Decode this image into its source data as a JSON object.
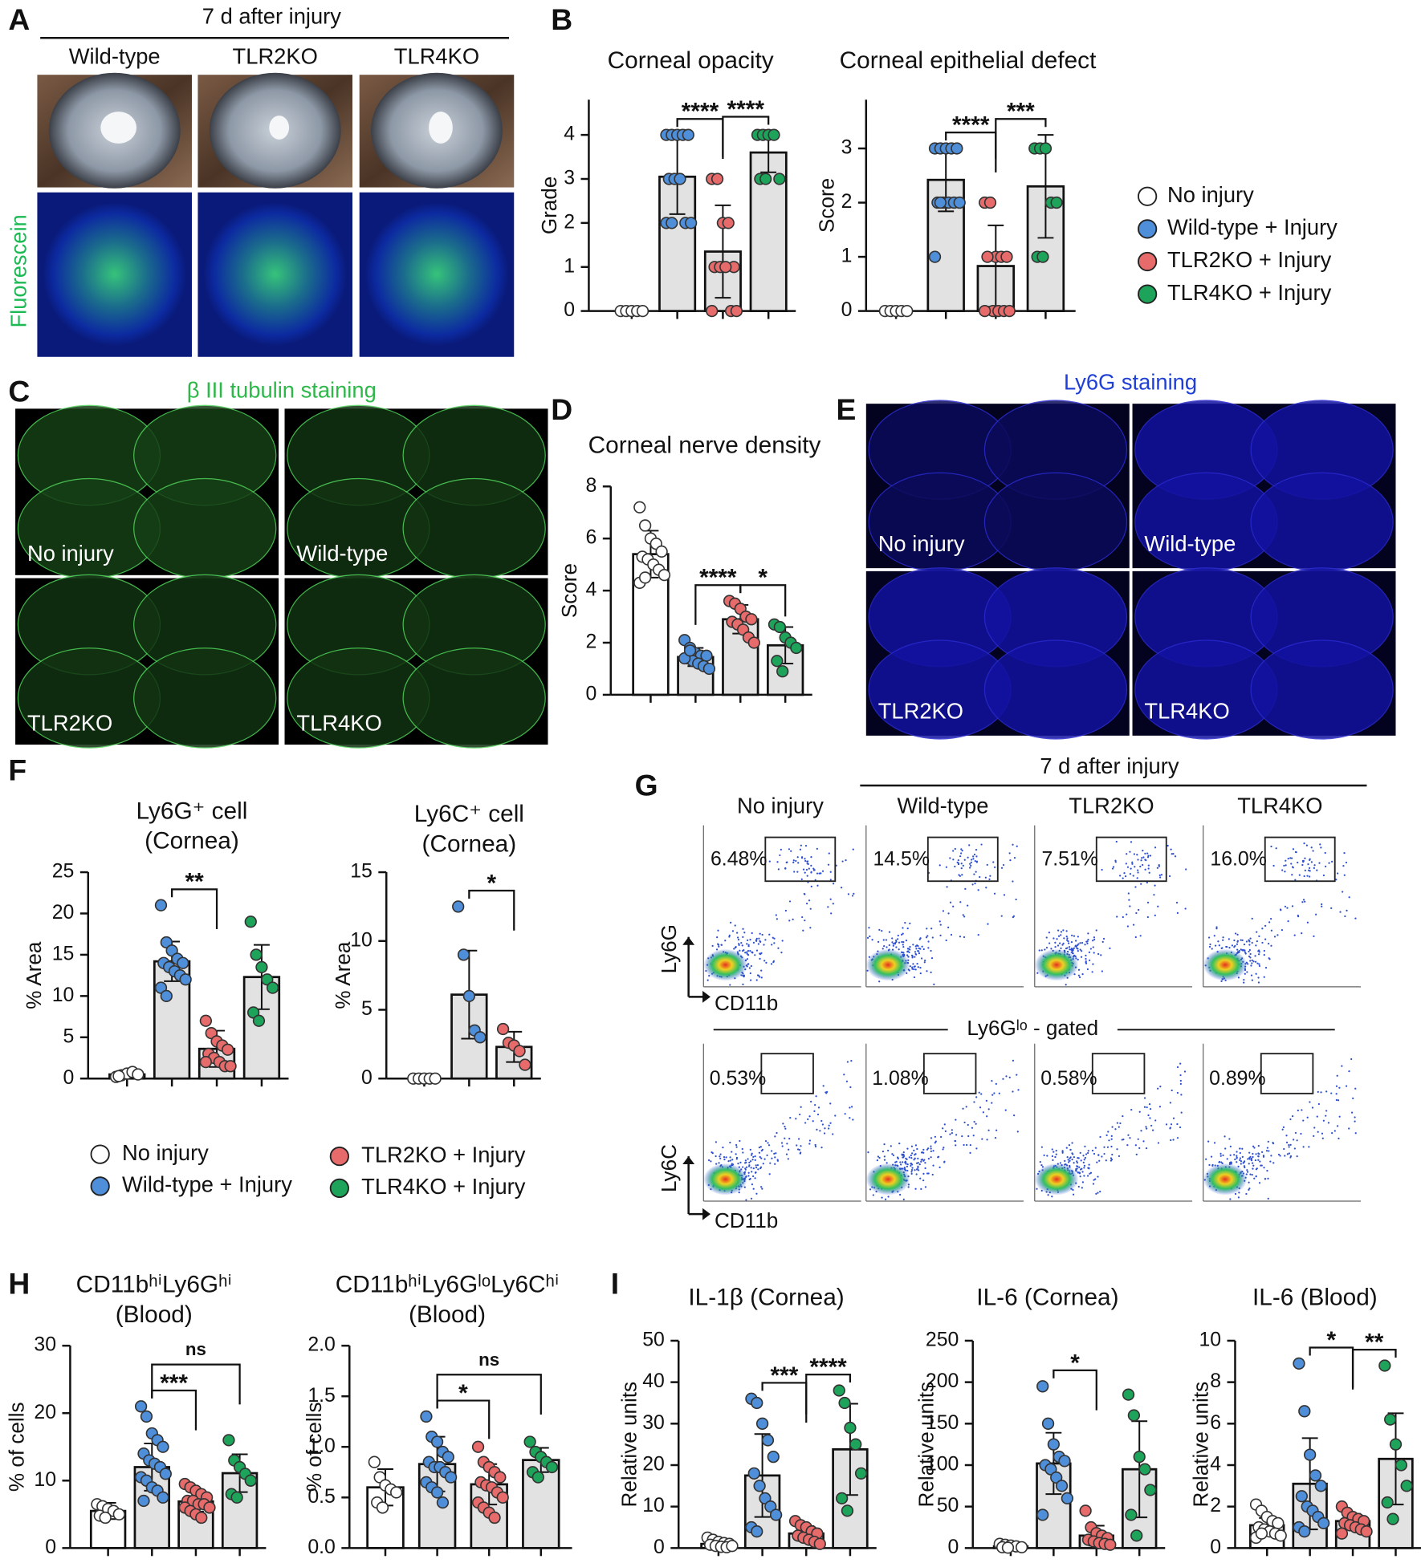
{
  "panel_labels": [
    "A",
    "B",
    "C",
    "D",
    "E",
    "F",
    "G",
    "H",
    "I"
  ],
  "panel_a": {
    "header": "7 d after injury",
    "columns": [
      "Wild-type",
      "TLR2KO",
      "TLR4KO"
    ],
    "row_label": "Fluorescein"
  },
  "panel_c": {
    "title": "β III tubulin staining",
    "labels": [
      "No injury",
      "Wild-type",
      "TLR2KO",
      "TLR4KO"
    ]
  },
  "panel_e": {
    "title": "Ly6G staining",
    "labels": [
      "No injury",
      "Wild-type",
      "TLR2KO",
      "TLR4KO"
    ]
  },
  "panel_g": {
    "header": "7 d after injury",
    "columns": [
      "No injury",
      "Wild-type",
      "TLR2KO",
      "TLR4KO"
    ],
    "top_gates": [
      "6.48%",
      "14.5%",
      "7.51%",
      "16.0%"
    ],
    "bottom_gates": [
      "0.53%",
      "1.08%",
      "0.58%",
      "0.89%"
    ],
    "top_axes": {
      "y": "Ly6G",
      "x": "CD11b"
    },
    "bottom_axes": {
      "y": "Ly6C",
      "x": "CD11b"
    },
    "divider": "Ly6Gˡᵒ - gated"
  },
  "legend": [
    {
      "name": "No injury",
      "color": "#ffffff"
    },
    {
      "name": "Wild-type + Injury",
      "color": "#4f8fda"
    },
    {
      "name": "TLR2KO + Injury",
      "color": "#e86b6b"
    },
    {
      "name": "TLR4KO + Injury",
      "color": "#1ea45a"
    }
  ],
  "chart_data": [
    {
      "type": "bar",
      "title": [
        "Corneal opacity"
      ],
      "ylabel": "Grade",
      "ylim": [
        0,
        4.8
      ],
      "yticks": [
        0,
        1,
        2,
        3,
        4
      ],
      "values": [
        0,
        3.05,
        1.35,
        3.6
      ],
      "errors": [
        0,
        0.85,
        1.05,
        0.45
      ],
      "points": [
        [
          0,
          0,
          0,
          0,
          0
        ],
        [
          4,
          4,
          4,
          4,
          4,
          3,
          3,
          3,
          2,
          2,
          2,
          2
        ],
        [
          3,
          3,
          2,
          2,
          1,
          1,
          1,
          1,
          0,
          0,
          0
        ],
        [
          4,
          4,
          4,
          4,
          3,
          3,
          3
        ]
      ],
      "comparisons": [
        {
          "groups": [
            1,
            2
          ],
          "label": "****"
        },
        {
          "groups": [
            2,
            3
          ],
          "label": "****"
        }
      ]
    },
    {
      "type": "bar",
      "title": [
        "Corneal epithelial defect"
      ],
      "ylabel": "Score",
      "ylim": [
        0,
        3.9
      ],
      "yticks": [
        0,
        1,
        2,
        3
      ],
      "values": [
        0,
        2.42,
        0.83,
        2.3
      ],
      "errors": [
        0,
        0.58,
        0.75,
        0.95
      ],
      "points": [
        [
          0,
          0,
          0,
          0,
          0
        ],
        [
          3,
          3,
          3,
          3,
          3,
          2,
          2,
          2,
          2,
          2,
          1,
          2
        ],
        [
          2,
          2,
          1,
          1,
          1,
          1,
          0,
          0,
          0,
          0,
          0
        ],
        [
          3,
          3,
          3,
          2,
          2,
          1,
          1
        ]
      ],
      "comparisons": [
        {
          "groups": [
            1,
            2
          ],
          "label": "****"
        },
        {
          "groups": [
            2,
            3
          ],
          "label": "***"
        }
      ]
    },
    {
      "type": "bar",
      "title": [
        "Corneal nerve density"
      ],
      "ylabel": "Score",
      "ylim": [
        0,
        8
      ],
      "yticks": [
        0,
        2,
        4,
        6,
        8
      ],
      "values": [
        5.4,
        1.45,
        2.9,
        1.9
      ],
      "errors": [
        0.9,
        0.35,
        0.55,
        0.7
      ],
      "points": [
        [
          7.2,
          6.5,
          6.0,
          5.8,
          5.5,
          5.3,
          5.2,
          5.0,
          4.8,
          4.6,
          4.3,
          4.5
        ],
        [
          2.1,
          1.8,
          1.6,
          1.5,
          1.5,
          1.4,
          1.3,
          1.2,
          1.1,
          1.0,
          1.4,
          1.7
        ],
        [
          3.6,
          3.5,
          3.3,
          3.0,
          2.9,
          2.8,
          2.7,
          2.5,
          2.2,
          2.0
        ],
        [
          2.7,
          2.6,
          2.2,
          2.0,
          1.8,
          1.3,
          0.9
        ]
      ],
      "comparisons": [
        {
          "groups": [
            1,
            2
          ],
          "label": "****"
        },
        {
          "groups": [
            2,
            3
          ],
          "label": "*"
        }
      ]
    },
    {
      "type": "bar",
      "title": [
        "Ly6G⁺ cell",
        "(Cornea)"
      ],
      "ylabel": "% Area",
      "ylim": [
        0,
        25
      ],
      "yticks": [
        0,
        5,
        10,
        15,
        20,
        25
      ],
      "values": [
        0.5,
        14.2,
        3.6,
        12.3
      ],
      "errors": [
        0.3,
        2.4,
        2.2,
        3.9
      ],
      "points": [
        [
          0.2,
          0.4,
          0.6,
          0.8,
          0.5,
          0.3
        ],
        [
          21,
          16.5,
          15.5,
          14.5,
          14,
          14,
          13.5,
          13,
          12.5,
          12,
          11,
          10
        ],
        [
          7,
          5.5,
          4.5,
          4,
          3.5,
          3,
          2.5,
          2,
          1.5,
          1.5,
          2
        ],
        [
          19,
          15,
          13.5,
          12,
          11,
          8,
          7
        ]
      ],
      "comparisons": [
        {
          "groups": [
            1,
            2
          ],
          "label": "**"
        }
      ]
    },
    {
      "type": "bar",
      "title": [
        "Ly6C⁺ cell",
        "(Cornea)"
      ],
      "ylabel": "% Area",
      "ylim": [
        0,
        15
      ],
      "yticks": [
        0,
        5,
        10,
        15
      ],
      "values": [
        0,
        6.1,
        2.3
      ],
      "errors": [
        0,
        3.2,
        1.1
      ],
      "points": [
        [
          0,
          0,
          0,
          0,
          0
        ],
        [
          12.5,
          9,
          6,
          3.5,
          3
        ],
        [
          3.6,
          2.6,
          2.4,
          2.0,
          1.0
        ]
      ],
      "comparisons": [
        {
          "groups": [
            1,
            2
          ],
          "label": "*"
        }
      ]
    },
    {
      "type": "bar",
      "title": [
        "CD11bʰⁱLy6Gʰⁱ",
        "(Blood)"
      ],
      "ylabel": "% of cells",
      "ylim": [
        0,
        30
      ],
      "yticks": [
        0,
        10,
        20,
        30
      ],
      "values": [
        5.5,
        12,
        6.9,
        11.1
      ],
      "errors": [
        1.2,
        3.5,
        1.5,
        2.8
      ],
      "points": [
        [
          6.5,
          6.2,
          5.8,
          5.5,
          5,
          4.8,
          4.5
        ],
        [
          21,
          19.5,
          17,
          16,
          15,
          14,
          13,
          12.5,
          12,
          11,
          10.5,
          10,
          9,
          8.5,
          7.5,
          7
        ],
        [
          9.5,
          9,
          8.5,
          8,
          7.5,
          7,
          7,
          6.5,
          6.5,
          6,
          6,
          5.5,
          5,
          4.5
        ],
        [
          16,
          13,
          12,
          11,
          10,
          8,
          7.5
        ]
      ],
      "comparisons": [
        {
          "groups": [
            1,
            2
          ],
          "label": "***"
        },
        {
          "groups": [
            1,
            3
          ],
          "label": "ns"
        }
      ]
    },
    {
      "type": "bar",
      "title": [
        "CD11bʰⁱLy6GˡᵒLy6Cʰⁱ",
        "(Blood)"
      ],
      "ylabel": "% of cells",
      "ylim": [
        0,
        2
      ],
      "yticks": [
        {
          "value": 0,
          "label": "0.0"
        },
        0.5,
        {
          "value": 1,
          "label": "1.0"
        },
        1.5,
        {
          "value": 2,
          "label": "2.0"
        }
      ],
      "values": [
        0.6,
        0.83,
        0.63,
        0.87
      ],
      "errors": [
        0.18,
        0.27,
        0.2,
        0.12
      ],
      "points": [
        [
          0.85,
          0.7,
          0.62,
          0.58,
          0.55,
          0.45,
          0.4
        ],
        [
          1.3,
          1.1,
          1.05,
          0.95,
          0.9,
          0.85,
          0.8,
          0.8,
          0.75,
          0.7,
          0.65,
          0.6,
          0.55,
          0.45
        ],
        [
          1.0,
          0.85,
          0.8,
          0.75,
          0.7,
          0.65,
          0.62,
          0.6,
          0.55,
          0.5,
          0.45,
          0.4,
          0.35,
          0.3
        ],
        [
          1.05,
          0.95,
          0.9,
          0.85,
          0.8,
          0.75,
          0.7
        ]
      ],
      "comparisons": [
        {
          "groups": [
            1,
            2
          ],
          "label": "*"
        },
        {
          "groups": [
            1,
            3
          ],
          "label": "ns"
        }
      ]
    },
    {
      "type": "bar",
      "title": [
        "IL-1β (Cornea)"
      ],
      "ylabel": "Relative units",
      "ylim": [
        0,
        50
      ],
      "yticks": [
        0,
        10,
        20,
        30,
        40,
        50
      ],
      "values": [
        1,
        17.5,
        3.5,
        23.8
      ],
      "errors": [
        0.8,
        10,
        1.8,
        11
      ],
      "points": [
        [
          2.5,
          2,
          1.5,
          1.2,
          1,
          0.8,
          0.5,
          0.3,
          0.2,
          0.5
        ],
        [
          36,
          35,
          30,
          26,
          22,
          18,
          15,
          12,
          10,
          8,
          5,
          4
        ],
        [
          6.5,
          5.5,
          5,
          4,
          3.5,
          3,
          2.5,
          2,
          1.5,
          1
        ],
        [
          38,
          35,
          29,
          25,
          18,
          12,
          9
        ]
      ],
      "comparisons": [
        {
          "groups": [
            1,
            2
          ],
          "label": "***"
        },
        {
          "groups": [
            2,
            3
          ],
          "label": "****"
        }
      ]
    },
    {
      "type": "bar",
      "title": [
        "IL-6 (Cornea)"
      ],
      "ylabel": "Relative units",
      "ylim": [
        0,
        250
      ],
      "yticks": [
        0,
        50,
        100,
        150,
        200,
        250
      ],
      "values": [
        2,
        102,
        15,
        95
      ],
      "errors": [
        2,
        37,
        12,
        58
      ],
      "points": [
        [
          5,
          4,
          3,
          2,
          1,
          1,
          0.5
        ],
        [
          195,
          150,
          125,
          110,
          105,
          100,
          95,
          85,
          75,
          60,
          40
        ],
        [
          45,
          25,
          18,
          15,
          12,
          10,
          8,
          6,
          5,
          4
        ],
        [
          185,
          160,
          110,
          95,
          70,
          40,
          15
        ]
      ],
      "comparisons": [
        {
          "groups": [
            1,
            2
          ],
          "label": "*"
        }
      ]
    },
    {
      "type": "bar",
      "title": [
        "IL-6 (Blood)"
      ],
      "ylabel": "Relative units",
      "ylim": [
        0,
        10
      ],
      "yticks": [
        0,
        2,
        4,
        6,
        8,
        10
      ],
      "values": [
        1.1,
        3.1,
        1.3,
        4.3
      ],
      "errors": [
        0.35,
        2.2,
        0.35,
        2.2
      ],
      "points": [
        [
          2.1,
          1.8,
          1.5,
          1.3,
          1.2,
          1.0,
          0.9,
          0.8,
          0.7,
          0.6,
          0.5,
          0.7
        ],
        [
          8.9,
          6.6,
          4.5,
          3.5,
          3,
          2.5,
          2,
          1.8,
          1.5,
          1.2,
          1,
          0.8
        ],
        [
          2.0,
          1.7,
          1.5,
          1.4,
          1.3,
          1.2,
          1.1,
          1.0,
          0.9,
          0.8,
          0.7
        ],
        [
          8.8,
          6.2,
          5.0,
          4,
          3,
          2.2,
          1.4
        ]
      ],
      "comparisons": [
        {
          "groups": [
            1,
            2
          ],
          "label": "*"
        },
        {
          "groups": [
            2,
            3
          ],
          "label": "**"
        }
      ]
    }
  ]
}
